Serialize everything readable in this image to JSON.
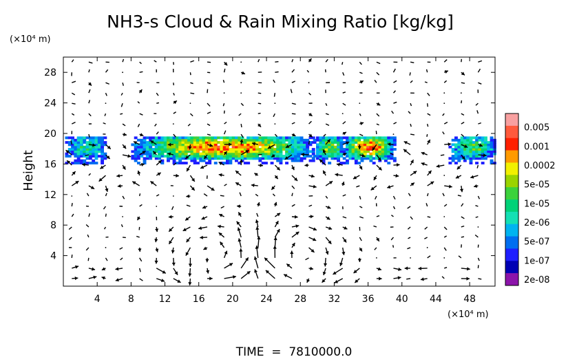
{
  "chart_data": {
    "type": "heatmap",
    "title": "NH3-s Cloud & Rain Mixing Ratio [kg/kg]",
    "xlabel": "",
    "xunit": "(×10⁴ m)",
    "ylabel": "Height",
    "yunit": "(×10⁴ m)",
    "xlim": [
      0,
      51
    ],
    "ylim": [
      0,
      30
    ],
    "xticks": [
      "4",
      "8",
      "12",
      "16",
      "20",
      "24",
      "28",
      "32",
      "36",
      "40",
      "44",
      "48"
    ],
    "yticks": [
      "4",
      "8",
      "12",
      "16",
      "20",
      "24",
      "28"
    ],
    "footer": "TIME  =  7810000.0",
    "colorbar": {
      "labels": [
        "0.005",
        "0.001",
        "0.0002",
        "5e-05",
        "1e-05",
        "2e-06",
        "5e-07",
        "1e-07",
        "2e-08"
      ],
      "colors": [
        "#f8a0a0",
        "#ff5a3c",
        "#ff2000",
        "#ff9a00",
        "#f2f000",
        "#9ad400",
        "#3cd23c",
        "#00d278",
        "#14e0b4",
        "#00b4f0",
        "#006ef0",
        "#1e1eff",
        "#0000b4",
        "#8c14aa"
      ]
    },
    "cloud_layer": {
      "height_range": [
        16,
        19.5
      ],
      "segments": [
        {
          "x0": 0.2,
          "x1": 5.0,
          "peak": 4
        },
        {
          "x0": 8.0,
          "x1": 29.5,
          "peak": 9
        },
        {
          "x0": 29.5,
          "x1": 33.0,
          "peak": 6
        },
        {
          "x0": 33.0,
          "x1": 39.0,
          "peak": 9
        },
        {
          "x0": 45.5,
          "x1": 51.0,
          "peak": 5
        }
      ]
    },
    "circulation_cells": [
      {
        "center": [
          18,
          4
        ],
        "radius": [
          5,
          4.2
        ],
        "direction": "counterclockwise"
      },
      {
        "center": [
          28,
          4
        ],
        "radius": [
          5,
          4.2
        ],
        "direction": "clockwise"
      }
    ]
  }
}
